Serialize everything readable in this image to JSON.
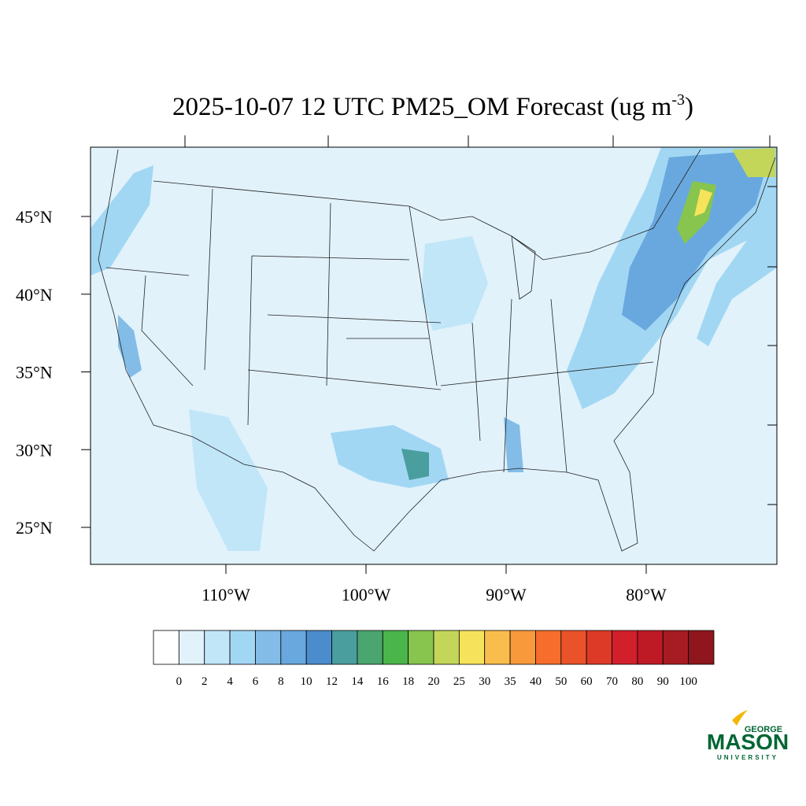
{
  "map": {
    "title": {
      "main": "2025-10-07 12 UTC PM25_OM Forecast (ug m",
      "superscript": "-3",
      "end": ")"
    },
    "lat_ticks": [
      {
        "value": 45,
        "label": "45°N"
      },
      {
        "value": 40,
        "label": "40°N"
      },
      {
        "value": 35,
        "label": "35°N"
      },
      {
        "value": 30,
        "label": "30°N"
      },
      {
        "value": 25,
        "label": "25°N"
      }
    ],
    "lon_ticks": [
      {
        "value": -110,
        "label": "110°W"
      },
      {
        "value": -100,
        "label": "100°W"
      },
      {
        "value": -90,
        "label": "90°W"
      },
      {
        "value": -80,
        "label": "80°W"
      }
    ],
    "colorbar": {
      "levels": [
        0,
        2,
        4,
        6,
        8,
        10,
        12,
        14,
        16,
        18,
        20,
        25,
        30,
        35,
        40,
        50,
        60,
        70,
        80,
        90,
        100
      ],
      "colors": [
        "#ffffff",
        "#e1f2fb",
        "#c0e6f8",
        "#a2d7f4",
        "#83bce6",
        "#68a8de",
        "#4a8ccc",
        "#4a9e9e",
        "#4aa56e",
        "#4ab54a",
        "#87c54e",
        "#c3d65a",
        "#f7e35b",
        "#f8bd4c",
        "#f89a3b",
        "#f66d2c",
        "#ea5329",
        "#dd3a27",
        "#d1202b",
        "#bd1a26",
        "#a71c22",
        "#8e161c"
      ]
    },
    "logo": {
      "top": "GEORGE",
      "name": "MASON",
      "bottom": "UNIVERSITY"
    }
  }
}
